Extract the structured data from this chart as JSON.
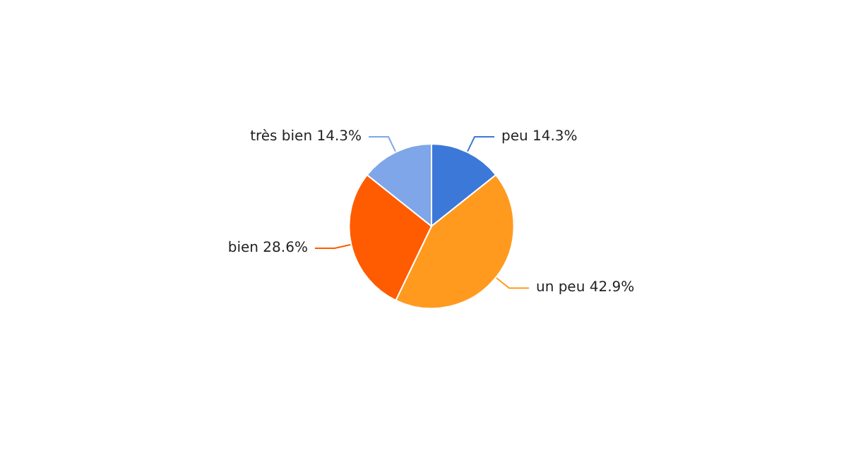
{
  "chart_data": {
    "type": "pie",
    "categories": [
      "peu",
      "un peu",
      "bien",
      "très bien"
    ],
    "values": [
      14.3,
      42.9,
      28.6,
      14.3
    ],
    "colors": [
      "#3c78d8",
      "#ff9a1f",
      "#ff5b00",
      "#7ea6e8"
    ],
    "value_labels": [
      "14.3%",
      "42.9%",
      "28.6%",
      "14.3%"
    ],
    "legend": false
  }
}
